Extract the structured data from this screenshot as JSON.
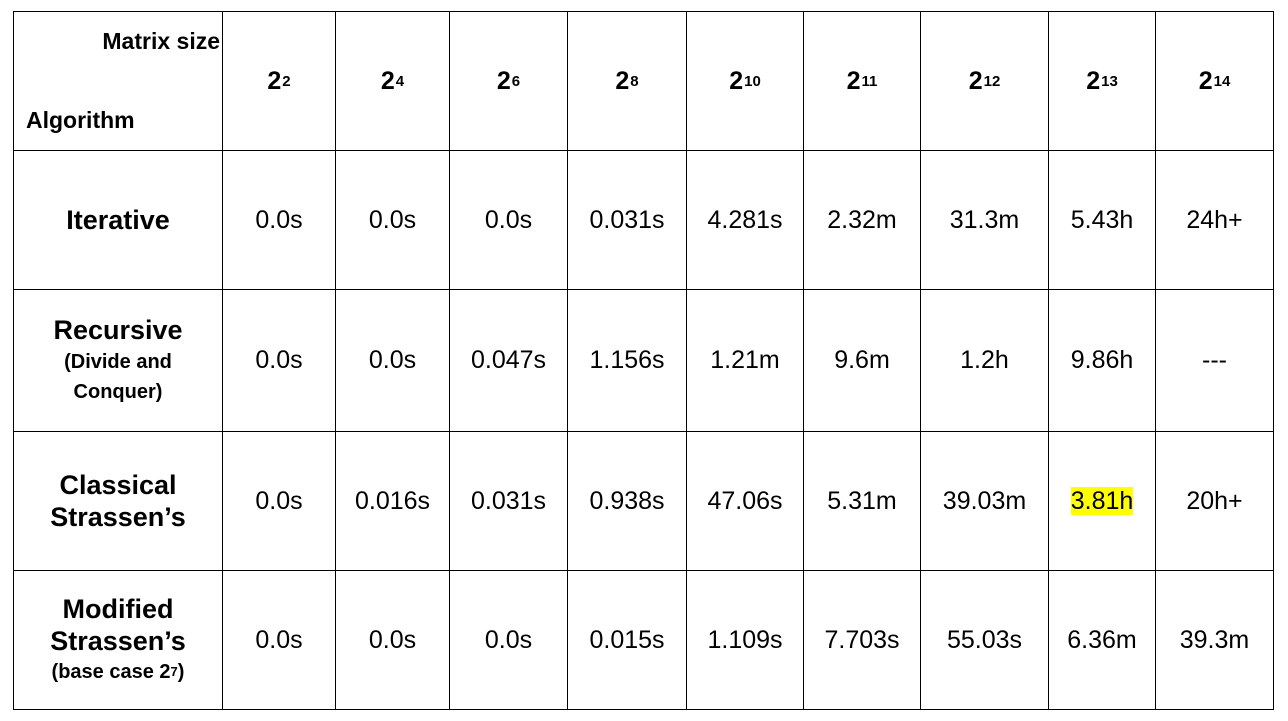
{
  "table": {
    "corner": {
      "top_label": "Matrix size",
      "bottom_label": "Algorithm"
    },
    "columns": [
      {
        "base": "2",
        "exp": "2"
      },
      {
        "base": "2",
        "exp": "4"
      },
      {
        "base": "2",
        "exp": "6"
      },
      {
        "base": "2",
        "exp": "8"
      },
      {
        "base": "2",
        "exp": "10"
      },
      {
        "base": "2",
        "exp": "11"
      },
      {
        "base": "2",
        "exp": "12"
      },
      {
        "base": "2",
        "exp": "13"
      },
      {
        "base": "2",
        "exp": "14"
      }
    ],
    "rows": [
      {
        "algo_line1": "Iterative",
        "algo_line2": "",
        "algo_sub1": "",
        "algo_sub2": "",
        "values": [
          "0.0s",
          "0.0s",
          "0.0s",
          "0.031s",
          "4.281s",
          "2.32m",
          "31.3m",
          "5.43h",
          "24h+"
        ]
      },
      {
        "algo_line1": "Recursive",
        "algo_line2": "",
        "algo_sub1": "(Divide and",
        "algo_sub2": "Conquer)",
        "values": [
          "0.0s",
          "0.0s",
          "0.047s",
          "1.156s",
          "1.21m",
          "9.6m",
          "1.2h",
          "9.86h",
          "---"
        ]
      },
      {
        "algo_line1": "Classical",
        "algo_line2": "Strassen’s",
        "algo_sub1": "",
        "algo_sub2": "",
        "values": [
          "0.0s",
          "0.016s",
          "0.031s",
          "0.938s",
          "47.06s",
          "5.31m",
          "39.03m",
          "3.81h",
          "20h+"
        ]
      },
      {
        "algo_line1": "Modified",
        "algo_line2": "Strassen’s",
        "algo_sub1": "(base case 2",
        "algo_sub_exp": "7",
        "algo_sub_close": ")",
        "values": [
          "0.0s",
          "0.0s",
          "0.0s",
          "0.015s",
          "1.109s",
          "7.703s",
          "55.03s",
          "6.36m",
          "39.3m"
        ]
      }
    ],
    "highlight_color": "#ffff00",
    "highlighted_cell": {
      "row": 2,
      "col": 7
    }
  }
}
